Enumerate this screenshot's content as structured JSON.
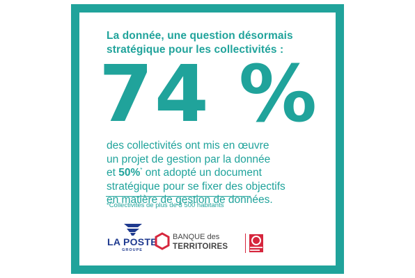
{
  "colors": {
    "teal": "#20a39b",
    "laposte_blue": "#1f3a8f",
    "banque_red": "#d6263d",
    "banque_gray": "#444444"
  },
  "headline": {
    "line1": "La donnée, une question désormais",
    "line2": "stratégique pour les collectivités :"
  },
  "stat": {
    "value": "74 %"
  },
  "body": {
    "line1": "des collectivités ont mis en œuvre",
    "line2": "un projet de gestion par la donnée",
    "line3_prefix": "et ",
    "line3_highlight": "50%",
    "line3_sup": "*",
    "line3_suffix": " ont adopté un document",
    "line4": "stratégique pour se fixer des objectifs",
    "line5": "en matière de gestion de données."
  },
  "footnote": "*Collectivités de plus de 3 500 habitants",
  "logos": {
    "laposte": {
      "name": "LA POSTE",
      "sub": "GROUPE",
      "icon": "laposte-bird-icon"
    },
    "banque": {
      "line1": "BANQUE des",
      "line2": "TERRITOIRES",
      "icon": "hexagon-icon",
      "cdc_icon": "caisse-des-depots-icon"
    }
  }
}
